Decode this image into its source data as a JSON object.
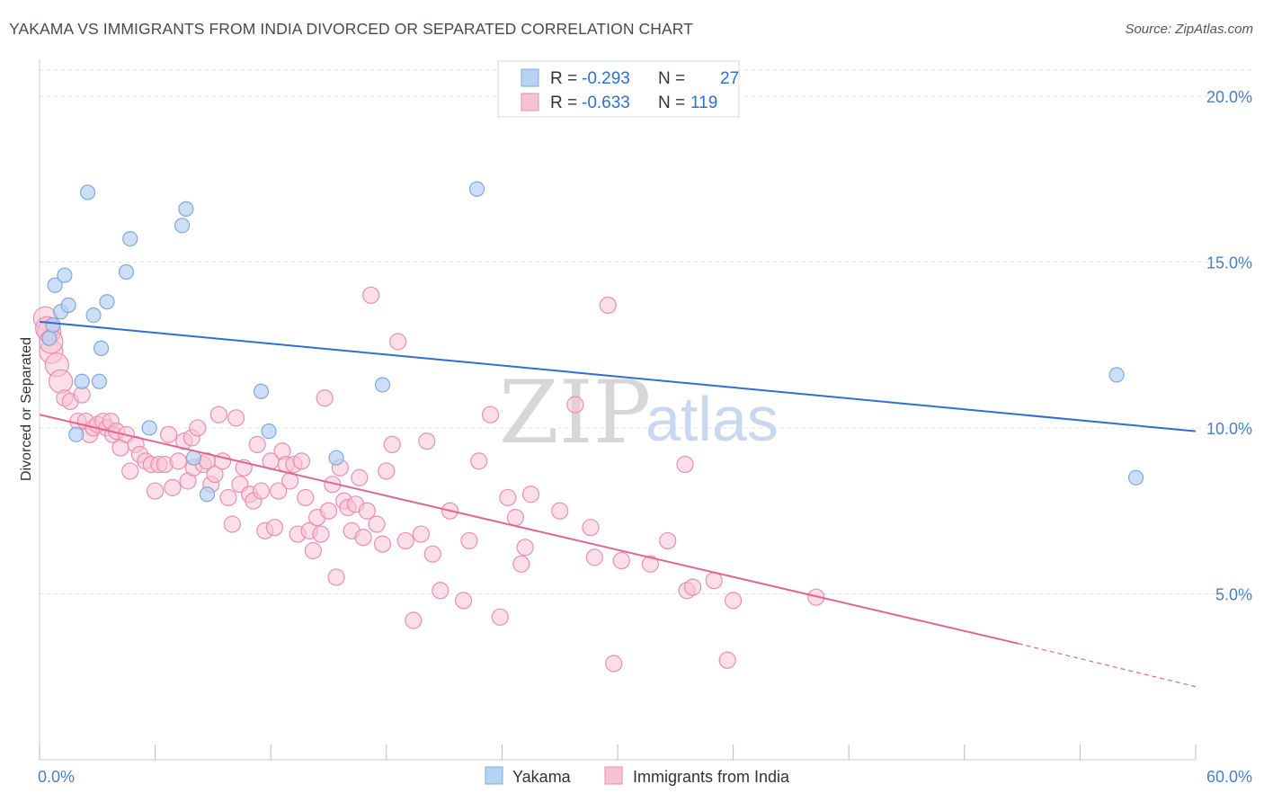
{
  "title": "YAKAMA VS IMMIGRANTS FROM INDIA DIVORCED OR SEPARATED CORRELATION CHART",
  "source": "Source: ZipAtlas.com",
  "watermark": {
    "zip": "ZIP",
    "atlas": "atlas"
  },
  "legend": {
    "r_label": "R =",
    "n_label": "N =",
    "series": [
      {
        "name": "Yakama",
        "r": "-0.293",
        "n": "27"
      },
      {
        "name": "Immigrants from India",
        "r": "-0.633",
        "n": "119"
      }
    ]
  },
  "colors": {
    "yakama_fill": "#b8d2f4",
    "yakama_stroke": "#7fa8de",
    "yakama_line": "#2f6fd0",
    "india_fill": "#f7c2d3",
    "india_stroke": "#ea8fae",
    "india_line": "#e0668f",
    "tick_label": "#4a7ec8",
    "grid": "#e3e3e3"
  },
  "chart_data": {
    "type": "scatter",
    "title": "YAKAMA VS IMMIGRANTS FROM INDIA DIVORCED OR SEPARATED CORRELATION CHART",
    "xlabel": "",
    "ylabel": "Divorced or Separated",
    "xlim": [
      0,
      60
    ],
    "ylim": [
      0,
      21
    ],
    "x_tick_labels": [
      "0.0%",
      "60.0%"
    ],
    "y_ticks": [
      5,
      10,
      15,
      20
    ],
    "y_tick_labels": [
      "5.0%",
      "10.0%",
      "15.0%",
      "20.0%"
    ],
    "grid": true,
    "legend_position": "top-center",
    "series": [
      {
        "name": "Yakama",
        "r": -0.293,
        "n": 27,
        "trend": {
          "x": [
            0,
            60
          ],
          "y": [
            13.2,
            9.9
          ]
        },
        "points": [
          [
            0.5,
            12.7
          ],
          [
            0.7,
            13.1
          ],
          [
            0.8,
            14.3
          ],
          [
            1.1,
            13.5
          ],
          [
            1.3,
            14.6
          ],
          [
            1.5,
            13.7
          ],
          [
            1.9,
            9.8
          ],
          [
            2.2,
            11.4
          ],
          [
            2.5,
            17.1
          ],
          [
            2.8,
            13.4
          ],
          [
            3.1,
            11.4
          ],
          [
            3.2,
            12.4
          ],
          [
            3.5,
            13.8
          ],
          [
            4.5,
            14.7
          ],
          [
            4.7,
            15.7
          ],
          [
            5.7,
            10.0
          ],
          [
            7.4,
            16.1
          ],
          [
            7.6,
            16.6
          ],
          [
            8.0,
            9.1
          ],
          [
            8.7,
            8.0
          ],
          [
            11.5,
            11.1
          ],
          [
            11.9,
            9.9
          ],
          [
            15.4,
            9.1
          ],
          [
            17.8,
            11.3
          ],
          [
            22.7,
            17.2
          ],
          [
            55.9,
            11.6
          ],
          [
            56.9,
            8.5
          ]
        ]
      },
      {
        "name": "Immigrants from India",
        "r": -0.633,
        "n": 119,
        "trend": {
          "x": [
            0,
            50.8
          ],
          "y": [
            10.4,
            3.5
          ]
        },
        "trend_extension": {
          "x": [
            50.8,
            60
          ],
          "y": [
            3.5,
            2.2
          ]
        },
        "points": [
          [
            0.3,
            13.3
          ],
          [
            0.5,
            12.9
          ],
          [
            0.6,
            12.3
          ],
          [
            0.9,
            11.9
          ],
          [
            1.1,
            11.4
          ],
          [
            1.3,
            10.9
          ],
          [
            1.6,
            10.8
          ],
          [
            2.0,
            10.2
          ],
          [
            2.2,
            11.0
          ],
          [
            2.4,
            10.2
          ],
          [
            2.6,
            9.8
          ],
          [
            2.8,
            10.0
          ],
          [
            3.0,
            10.1
          ],
          [
            3.3,
            10.2
          ],
          [
            3.5,
            10.0
          ],
          [
            3.7,
            10.2
          ],
          [
            3.8,
            9.8
          ],
          [
            4.0,
            9.9
          ],
          [
            4.2,
            9.4
          ],
          [
            4.5,
            9.8
          ],
          [
            4.7,
            8.7
          ],
          [
            5.0,
            9.5
          ],
          [
            5.2,
            9.2
          ],
          [
            5.5,
            9.0
          ],
          [
            5.8,
            8.9
          ],
          [
            6.0,
            8.1
          ],
          [
            6.2,
            8.9
          ],
          [
            6.5,
            8.9
          ],
          [
            6.7,
            9.8
          ],
          [
            6.9,
            8.2
          ],
          [
            7.2,
            9.0
          ],
          [
            7.5,
            9.6
          ],
          [
            7.7,
            8.4
          ],
          [
            7.9,
            9.7
          ],
          [
            8.0,
            8.8
          ],
          [
            8.2,
            10.0
          ],
          [
            8.5,
            8.9
          ],
          [
            8.7,
            9.0
          ],
          [
            8.9,
            8.3
          ],
          [
            9.1,
            8.6
          ],
          [
            9.3,
            10.4
          ],
          [
            9.5,
            9.0
          ],
          [
            9.8,
            7.9
          ],
          [
            10.0,
            7.1
          ],
          [
            10.2,
            10.3
          ],
          [
            10.4,
            8.3
          ],
          [
            10.6,
            8.8
          ],
          [
            10.9,
            8.0
          ],
          [
            11.1,
            7.8
          ],
          [
            11.3,
            9.5
          ],
          [
            11.5,
            8.1
          ],
          [
            11.7,
            6.9
          ],
          [
            12.0,
            9.0
          ],
          [
            12.2,
            7.0
          ],
          [
            12.4,
            8.1
          ],
          [
            12.6,
            9.3
          ],
          [
            12.8,
            8.9
          ],
          [
            13.0,
            8.4
          ],
          [
            13.2,
            8.9
          ],
          [
            13.4,
            6.8
          ],
          [
            13.6,
            9.0
          ],
          [
            13.8,
            7.9
          ],
          [
            14.0,
            6.9
          ],
          [
            14.2,
            6.3
          ],
          [
            14.4,
            7.3
          ],
          [
            14.6,
            6.8
          ],
          [
            14.8,
            10.9
          ],
          [
            15.0,
            7.5
          ],
          [
            15.2,
            8.3
          ],
          [
            15.4,
            5.5
          ],
          [
            15.6,
            8.8
          ],
          [
            15.8,
            7.8
          ],
          [
            16.0,
            7.6
          ],
          [
            16.2,
            6.9
          ],
          [
            16.4,
            7.7
          ],
          [
            16.6,
            8.5
          ],
          [
            16.8,
            6.7
          ],
          [
            17.0,
            7.5
          ],
          [
            17.2,
            14.0
          ],
          [
            17.5,
            7.1
          ],
          [
            17.8,
            6.5
          ],
          [
            18.0,
            8.7
          ],
          [
            18.3,
            9.5
          ],
          [
            18.6,
            12.6
          ],
          [
            19.0,
            6.6
          ],
          [
            19.4,
            4.2
          ],
          [
            19.8,
            6.8
          ],
          [
            20.1,
            9.6
          ],
          [
            20.4,
            6.2
          ],
          [
            20.8,
            5.1
          ],
          [
            21.3,
            7.5
          ],
          [
            22.0,
            4.8
          ],
          [
            22.3,
            6.6
          ],
          [
            22.8,
            9.0
          ],
          [
            23.4,
            10.4
          ],
          [
            23.9,
            4.3
          ],
          [
            24.3,
            7.9
          ],
          [
            24.7,
            7.3
          ],
          [
            25.0,
            5.9
          ],
          [
            25.2,
            6.4
          ],
          [
            25.5,
            8.0
          ],
          [
            27.0,
            7.5
          ],
          [
            27.8,
            10.7
          ],
          [
            28.6,
            7.0
          ],
          [
            28.8,
            6.1
          ],
          [
            29.5,
            13.7
          ],
          [
            29.8,
            2.9
          ],
          [
            30.2,
            6.0
          ],
          [
            31.7,
            5.9
          ],
          [
            32.6,
            6.6
          ],
          [
            33.5,
            8.9
          ],
          [
            33.6,
            5.1
          ],
          [
            33.9,
            5.2
          ],
          [
            35.0,
            5.4
          ],
          [
            35.7,
            3.0
          ],
          [
            36.0,
            4.8
          ],
          [
            40.3,
            4.9
          ],
          [
            0.4,
            13.0
          ],
          [
            0.6,
            12.6
          ]
        ]
      }
    ]
  }
}
